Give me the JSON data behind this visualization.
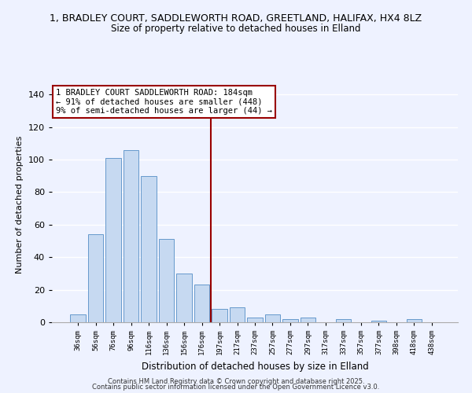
{
  "title": "1, BRADLEY COURT, SADDLEWORTH ROAD, GREETLAND, HALIFAX, HX4 8LZ",
  "subtitle": "Size of property relative to detached houses in Elland",
  "xlabel": "Distribution of detached houses by size in Elland",
  "ylabel": "Number of detached properties",
  "bar_labels": [
    "36sqm",
    "56sqm",
    "76sqm",
    "96sqm",
    "116sqm",
    "136sqm",
    "156sqm",
    "176sqm",
    "197sqm",
    "217sqm",
    "237sqm",
    "257sqm",
    "277sqm",
    "297sqm",
    "317sqm",
    "337sqm",
    "357sqm",
    "377sqm",
    "398sqm",
    "418sqm",
    "438sqm"
  ],
  "bar_values": [
    5,
    54,
    101,
    106,
    90,
    51,
    30,
    23,
    8,
    9,
    3,
    5,
    2,
    3,
    0,
    2,
    0,
    1,
    0,
    2,
    0
  ],
  "bar_color": "#c6d9f1",
  "bar_edge_color": "#6699cc",
  "vline_x": 7.5,
  "vline_color": "#990000",
  "annotation_title": "1 BRADLEY COURT SADDLEWORTH ROAD: 184sqm",
  "annotation_line1": "← 91% of detached houses are smaller (448)",
  "annotation_line2": "9% of semi-detached houses are larger (44) →",
  "ylim": [
    0,
    145
  ],
  "yticks": [
    0,
    20,
    40,
    60,
    80,
    100,
    120,
    140
  ],
  "footer1": "Contains HM Land Registry data © Crown copyright and database right 2025.",
  "footer2": "Contains public sector information licensed under the Open Government Licence v3.0.",
  "bg_color": "#eef2ff",
  "grid_color": "#ffffff"
}
